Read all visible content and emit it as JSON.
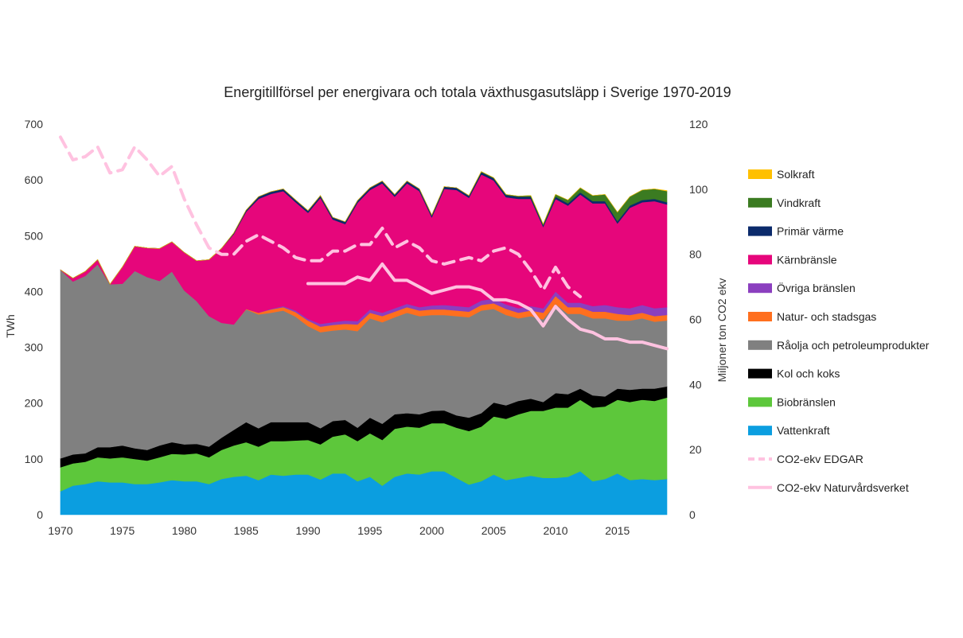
{
  "chart_data": {
    "type": "area",
    "title": "Energitillförsel per energivara och totala växthusgasutsläpp i Sverige 1970-2019",
    "ylabel": "TWh",
    "y2label": "Miljoner ton CO2 ekv",
    "ylim": [
      0,
      700
    ],
    "y2lim": [
      0,
      120
    ],
    "yticks": [
      "0",
      "100",
      "200",
      "300",
      "400",
      "500",
      "600",
      "700"
    ],
    "y2ticks": [
      "0",
      "20",
      "40",
      "60",
      "80",
      "100",
      "120"
    ],
    "xticks": [
      "1970",
      "1975",
      "1980",
      "1985",
      "1990",
      "1995",
      "2000",
      "2005",
      "2010",
      "2015"
    ],
    "x": [
      1970,
      1971,
      1972,
      1973,
      1974,
      1975,
      1976,
      1977,
      1978,
      1979,
      1980,
      1981,
      1982,
      1983,
      1984,
      1985,
      1986,
      1987,
      1988,
      1989,
      1990,
      1991,
      1992,
      1993,
      1994,
      1995,
      1996,
      1997,
      1998,
      1999,
      2000,
      2001,
      2002,
      2003,
      2004,
      2005,
      2006,
      2007,
      2008,
      2009,
      2010,
      2011,
      2012,
      2013,
      2014,
      2015,
      2016,
      2017,
      2018,
      2019
    ],
    "legend_position": "right",
    "stacked_series": [
      {
        "name": "Vattenkraft",
        "color": "#0b9ee0",
        "values": [
          42,
          52,
          55,
          60,
          58,
          58,
          55,
          55,
          58,
          62,
          60,
          60,
          55,
          64,
          68,
          70,
          62,
          72,
          70,
          72,
          72,
          63,
          74,
          74,
          60,
          68,
          52,
          68,
          74,
          72,
          78,
          78,
          66,
          54,
          60,
          72,
          62,
          66,
          70,
          66,
          66,
          68,
          78,
          60,
          64,
          74,
          62,
          64,
          62,
          64
        ]
      },
      {
        "name": "Biobränslen",
        "color": "#5dc73b",
        "values": [
          43,
          40,
          40,
          43,
          43,
          45,
          45,
          42,
          45,
          47,
          48,
          50,
          48,
          52,
          56,
          60,
          60,
          60,
          62,
          61,
          62,
          63,
          66,
          70,
          72,
          78,
          82,
          86,
          84,
          84,
          86,
          86,
          90,
          96,
          98,
          104,
          110,
          114,
          116,
          120,
          126,
          124,
          128,
          132,
          130,
          132,
          140,
          142,
          142,
          146
        ]
      },
      {
        "name": "Kol och koks",
        "color": "#000000",
        "values": [
          16,
          16,
          15,
          18,
          20,
          21,
          19,
          19,
          21,
          21,
          18,
          17,
          19,
          22,
          28,
          36,
          33,
          34,
          34,
          33,
          32,
          29,
          28,
          26,
          24,
          28,
          29,
          26,
          24,
          24,
          22,
          23,
          22,
          24,
          24,
          25,
          24,
          24,
          22,
          16,
          26,
          24,
          20,
          22,
          18,
          20,
          22,
          20,
          22,
          20
        ]
      },
      {
        "name": "Råolja och petroleumprodukter",
        "color": "#808080",
        "values": [
          338,
          310,
          318,
          328,
          292,
          290,
          318,
          310,
          295,
          306,
          276,
          256,
          234,
          206,
          189,
          202,
          204,
          196,
          200,
          189,
          172,
          172,
          162,
          162,
          173,
          178,
          182,
          174,
          180,
          176,
          172,
          171,
          178,
          180,
          184,
          168,
          162,
          148,
          148,
          148,
          160,
          144,
          134,
          138,
          140,
          122,
          124,
          126,
          120,
          118
        ]
      },
      {
        "name": "Natur- och stadsgas",
        "color": "#ff6f1e",
        "values": [
          0,
          0,
          0,
          0,
          0,
          0,
          0,
          0,
          0,
          0,
          0,
          0,
          0,
          0,
          0,
          1,
          3,
          6,
          6,
          8,
          10,
          10,
          10,
          10,
          12,
          10,
          11,
          10,
          10,
          10,
          10,
          10,
          10,
          10,
          10,
          10,
          11,
          10,
          10,
          12,
          14,
          12,
          12,
          12,
          12,
          12,
          10,
          10,
          10,
          10
        ]
      },
      {
        "name": "Övriga bränslen",
        "color": "#8b3fbf",
        "values": [
          0,
          0,
          0,
          0,
          0,
          0,
          0,
          0,
          0,
          0,
          0,
          0,
          0,
          0,
          0,
          0,
          0,
          1,
          2,
          3,
          3,
          5,
          5,
          6,
          6,
          6,
          6,
          6,
          6,
          6,
          7,
          8,
          8,
          8,
          8,
          8,
          8,
          8,
          8,
          8,
          8,
          8,
          8,
          10,
          12,
          12,
          12,
          14,
          14,
          14
        ]
      },
      {
        "name": "Kärnbränsle",
        "color": "#e6067b",
        "values": [
          0,
          6,
          8,
          8,
          0,
          30,
          44,
          52,
          58,
          53,
          68,
          72,
          101,
          133,
          162,
          174,
          204,
          206,
          206,
          194,
          190,
          226,
          184,
          173,
          212,
          214,
          232,
          200,
          216,
          208,
          158,
          208,
          208,
          196,
          226,
          212,
          192,
          196,
          192,
          146,
          166,
          174,
          194,
          184,
          182,
          150,
          180,
          184,
          192,
          184
        ]
      },
      {
        "name": "Primär värme",
        "color": "#0b2a6b",
        "values": [
          0,
          0,
          0,
          0,
          0,
          0,
          0,
          0,
          0,
          0,
          0,
          0,
          0,
          0,
          2,
          3,
          4,
          4,
          4,
          4,
          4,
          4,
          4,
          4,
          4,
          4,
          4,
          4,
          4,
          4,
          4,
          4,
          4,
          4,
          4,
          4,
          4,
          4,
          4,
          3,
          4,
          4,
          4,
          4,
          4,
          4,
          4,
          4,
          4,
          4
        ]
      },
      {
        "name": "Vindkraft",
        "color": "#3b7b21",
        "values": [
          0,
          0,
          0,
          0,
          0,
          0,
          0,
          0,
          0,
          0,
          0,
          0,
          0,
          0,
          0,
          0,
          0,
          0,
          0,
          0,
          0,
          0,
          0,
          0,
          0,
          0,
          0,
          0,
          0,
          0,
          0,
          0,
          0,
          0,
          1,
          1,
          1,
          1,
          2,
          2,
          4,
          6,
          8,
          10,
          12,
          16,
          16,
          18,
          18,
          20
        ]
      },
      {
        "name": "Solkraft",
        "color": "#ffc000",
        "values": [
          0,
          0,
          0,
          0,
          0,
          0,
          0,
          0,
          0,
          0,
          0,
          0,
          0,
          0,
          0,
          0,
          0,
          0,
          0,
          0,
          0,
          0,
          0,
          0,
          0,
          0,
          0,
          0,
          0,
          0,
          0,
          0,
          0,
          0,
          0,
          0,
          0,
          0,
          0,
          0,
          0,
          0,
          0,
          0,
          0,
          0,
          0,
          0,
          0,
          1
        ]
      }
    ],
    "line_series": [
      {
        "name": "CO2-ekv EDGAR",
        "color": "#ffc2e0",
        "style": "dashed",
        "axis": "right",
        "x": [
          1970,
          1971,
          1972,
          1973,
          1974,
          1975,
          1976,
          1977,
          1978,
          1979,
          1980,
          1981,
          1982,
          1983,
          1984,
          1985,
          1986,
          1987,
          1988,
          1989,
          1990,
          1991,
          1992,
          1993,
          1994,
          1995,
          1996,
          1997,
          1998,
          1999,
          2000,
          2001,
          2002,
          2003,
          2004,
          2005,
          2006,
          2007,
          2008,
          2009,
          2010,
          2011,
          2012
        ],
        "values": [
          116,
          109,
          110,
          113,
          105,
          106,
          113,
          109,
          104,
          107,
          97,
          89,
          82,
          80,
          80,
          84,
          86,
          84,
          82,
          79,
          78,
          78,
          81,
          81,
          83,
          83,
          88,
          82,
          84,
          82,
          78,
          77,
          78,
          79,
          78,
          81,
          82,
          80,
          75,
          69,
          76,
          70,
          67
        ]
      },
      {
        "name": "CO2-ekv Naturvårdsverket",
        "color": "#ffc2e0",
        "style": "solid",
        "axis": "right",
        "x": [
          1990,
          1991,
          1992,
          1993,
          1994,
          1995,
          1996,
          1997,
          1998,
          1999,
          2000,
          2001,
          2002,
          2003,
          2004,
          2005,
          2006,
          2007,
          2008,
          2009,
          2010,
          2011,
          2012,
          2013,
          2014,
          2015,
          2016,
          2017,
          2018,
          2019
        ],
        "values": [
          71,
          71,
          71,
          71,
          73,
          72,
          77,
          72,
          72,
          70,
          68,
          69,
          70,
          70,
          69,
          66,
          66,
          65,
          63,
          58,
          64,
          60,
          57,
          56,
          54,
          54,
          53,
          53,
          52,
          51
        ]
      }
    ],
    "legend_entries": [
      {
        "label": "Solkraft",
        "color": "#ffc000",
        "kind": "box"
      },
      {
        "label": "Vindkraft",
        "color": "#3b7b21",
        "kind": "box"
      },
      {
        "label": "Primär värme",
        "color": "#0b2a6b",
        "kind": "box"
      },
      {
        "label": "Kärnbränsle",
        "color": "#e6067b",
        "kind": "box"
      },
      {
        "label": "Övriga bränslen",
        "color": "#8b3fbf",
        "kind": "box"
      },
      {
        "label": "Natur- och stadsgas",
        "color": "#ff6f1e",
        "kind": "box"
      },
      {
        "label": "Råolja och petroleumprodukter",
        "color": "#808080",
        "kind": "box"
      },
      {
        "label": "Kol och koks",
        "color": "#000000",
        "kind": "box"
      },
      {
        "label": "Biobränslen",
        "color": "#5dc73b",
        "kind": "box"
      },
      {
        "label": "Vattenkraft",
        "color": "#0b9ee0",
        "kind": "box"
      },
      {
        "label": "CO2-ekv EDGAR",
        "color": "#ffc2e0",
        "kind": "dashed"
      },
      {
        "label": "CO2-ekv Naturvårdsverket",
        "color": "#ffc2e0",
        "kind": "solid"
      }
    ]
  }
}
